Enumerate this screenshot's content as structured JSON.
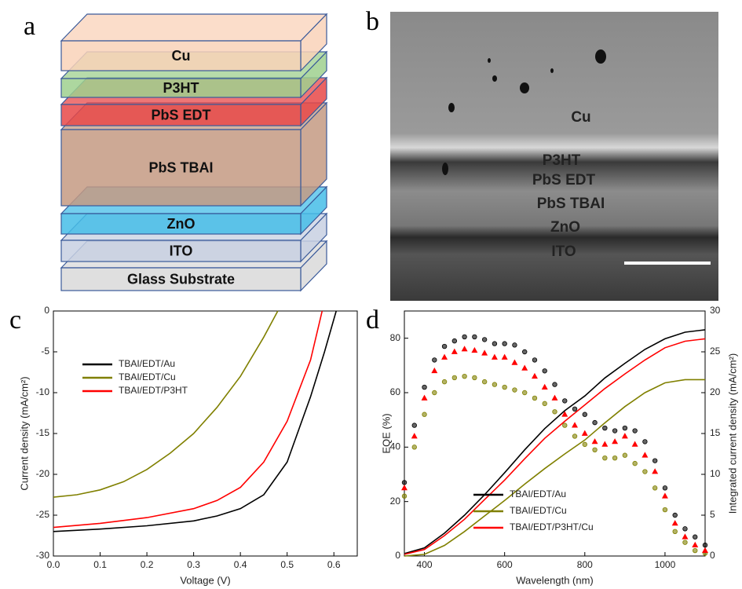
{
  "panel_letters": [
    "a",
    "b",
    "c",
    "d"
  ],
  "device_stack": {
    "layers": [
      "Cu",
      "P3HT",
      "PbS EDT",
      "PbS TBAI",
      "ZnO",
      "ITO",
      "Glass Substrate"
    ]
  },
  "sem_image": {
    "labels": [
      "Cu",
      "P3HT",
      "PbS EDT",
      "PbS TBAI",
      "ZnO",
      "ITO"
    ]
  },
  "chart_data": [
    {
      "type": "line",
      "xlabel": "Voltage (V)",
      "ylabel": "Current density (mA/cm²)",
      "xlim": [
        0,
        0.65
      ],
      "xticks": [
        {
          "value": 0,
          "label": "0.0"
        },
        {
          "value": 0.1,
          "label": "0.1"
        },
        {
          "value": 0.2,
          "label": "0.2"
        },
        {
          "value": 0.3,
          "label": "0.3"
        },
        {
          "value": 0.4,
          "label": "0.4"
        },
        {
          "value": 0.5,
          "label": "0.5"
        },
        {
          "value": 0.6,
          "label": "0.6"
        }
      ],
      "ylim": [
        -30,
        0
      ],
      "yticks": [
        -30,
        -25,
        -20,
        -15,
        -10,
        -5,
        0
      ],
      "legend": "upper left",
      "series": [
        {
          "name": "TBAI/EDT/Au",
          "color": "#000000",
          "x": [
            0,
            0.1,
            0.2,
            0.3,
            0.35,
            0.4,
            0.45,
            0.5,
            0.55,
            0.58,
            0.605
          ],
          "values": [
            -27,
            -26.7,
            -26.3,
            -25.7,
            -25.1,
            -24.2,
            -22.5,
            -18.5,
            -10.5,
            -5,
            0
          ]
        },
        {
          "name": "TBAI/EDT/Cu",
          "color": "#808000",
          "x": [
            0,
            0.05,
            0.1,
            0.15,
            0.2,
            0.25,
            0.3,
            0.35,
            0.4,
            0.45,
            0.48
          ],
          "values": [
            -22.8,
            -22.5,
            -21.9,
            -20.9,
            -19.4,
            -17.4,
            -15,
            -11.8,
            -8,
            -3.2,
            0
          ]
        },
        {
          "name": "TBAI/EDT/P3HT",
          "color": "#ff0000",
          "x": [
            0,
            0.1,
            0.2,
            0.3,
            0.35,
            0.4,
            0.45,
            0.5,
            0.55,
            0.575
          ],
          "values": [
            -26.5,
            -26,
            -25.3,
            -24.2,
            -23.2,
            -21.6,
            -18.5,
            -13.5,
            -6,
            0
          ]
        }
      ]
    },
    {
      "type": "combo",
      "xlabel": "Wavelength (nm)",
      "ylabel": "EQE (%)",
      "y2label": "Integrated current density (mA/cm²)",
      "xlim": [
        350,
        1100
      ],
      "xticks": [
        400,
        600,
        800,
        1000
      ],
      "ylim": [
        0,
        90
      ],
      "yticks": [
        0,
        20,
        40,
        60,
        80
      ],
      "y2lim": [
        0,
        30
      ],
      "y2ticks": [
        0,
        5,
        10,
        15,
        20,
        25,
        30
      ],
      "legend": "lower right",
      "series": [
        {
          "name": "TBAI/EDT/Au",
          "color": "#000000",
          "marker": "circle",
          "x": [
            350,
            375,
            400,
            425,
            450,
            475,
            500,
            525,
            550,
            575,
            600,
            625,
            650,
            675,
            700,
            725,
            750,
            775,
            800,
            825,
            850,
            875,
            900,
            925,
            950,
            975,
            1000,
            1025,
            1050,
            1075,
            1100
          ],
          "values": [
            27,
            48,
            62,
            72,
            77,
            79,
            80.5,
            80.5,
            79.5,
            78,
            78,
            77.5,
            75,
            72,
            68,
            63,
            57,
            54,
            52,
            49,
            47,
            46,
            47,
            46,
            42,
            35,
            25,
            15,
            10,
            7,
            4
          ]
        },
        {
          "name": "TBAI/EDT/Cu",
          "color": "#808000",
          "marker": "circle",
          "x": [
            350,
            375,
            400,
            425,
            450,
            475,
            500,
            525,
            550,
            575,
            600,
            625,
            650,
            675,
            700,
            725,
            750,
            775,
            800,
            825,
            850,
            875,
            900,
            925,
            950,
            975,
            1000,
            1025,
            1050,
            1075,
            1100
          ],
          "values": [
            22,
            40,
            52,
            60,
            64,
            65.5,
            66,
            65.5,
            64,
            63,
            62,
            61,
            60,
            58,
            56,
            53,
            48,
            44,
            41,
            39,
            36,
            36,
            37,
            34,
            31,
            25,
            17,
            9,
            5,
            2,
            1
          ]
        },
        {
          "name": "TBAI/EDT/P3HT/Cu",
          "color": "#ff0000",
          "marker": "triangle",
          "x": [
            350,
            375,
            400,
            425,
            450,
            475,
            500,
            525,
            550,
            575,
            600,
            625,
            650,
            675,
            700,
            725,
            750,
            775,
            800,
            825,
            850,
            875,
            900,
            925,
            950,
            975,
            1000,
            1025,
            1050,
            1075,
            1100
          ],
          "values": [
            25,
            44,
            58,
            68,
            73,
            75,
            76,
            75.5,
            74.5,
            73,
            73,
            71,
            69,
            66,
            62,
            58,
            52,
            48,
            45,
            42,
            41,
            42,
            44,
            41,
            37,
            31,
            22,
            12,
            7,
            4,
            2
          ]
        },
        {
          "color": "#000000",
          "axis": "y2",
          "x": [
            350,
            400,
            450,
            500,
            550,
            600,
            650,
            700,
            750,
            800,
            850,
            900,
            950,
            1000,
            1050,
            1100
          ],
          "values": [
            0.3,
            1,
            2.8,
            5,
            7.5,
            10.2,
            13,
            15.6,
            17.8,
            19.6,
            21.8,
            23.6,
            25.3,
            26.6,
            27.4,
            27.7
          ]
        },
        {
          "color": "#808000",
          "axis": "y2",
          "x": [
            350,
            400,
            450,
            500,
            550,
            600,
            650,
            700,
            750,
            800,
            850,
            900,
            950,
            1000,
            1050,
            1100
          ],
          "values": [
            0,
            0.2,
            1.3,
            3,
            4.9,
            6.8,
            8.8,
            10.7,
            12.5,
            14.2,
            16.3,
            18.3,
            20,
            21.2,
            21.6,
            21.6
          ]
        },
        {
          "color": "#ff0000",
          "axis": "y2",
          "x": [
            350,
            400,
            450,
            500,
            550,
            600,
            650,
            700,
            750,
            800,
            850,
            900,
            950,
            1000,
            1050,
            1100
          ],
          "values": [
            0.2,
            0.8,
            2.5,
            4.5,
            6.9,
            9.3,
            11.9,
            14.4,
            16.5,
            18.5,
            20.5,
            22.3,
            24,
            25.5,
            26.3,
            26.6
          ]
        }
      ]
    }
  ]
}
